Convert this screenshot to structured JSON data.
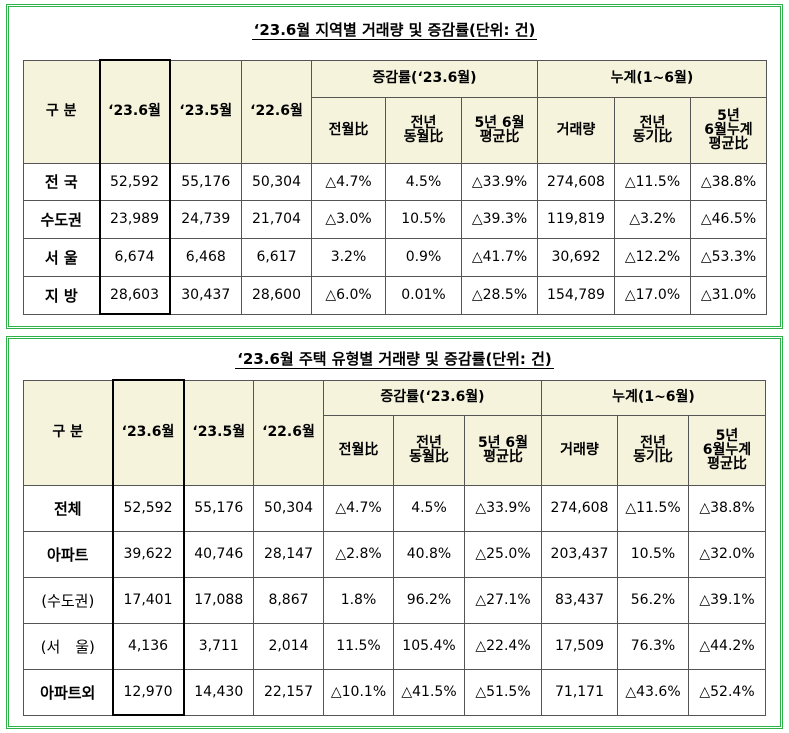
{
  "table1": {
    "title": "‘23.6월 지역별 거래량 및 증감률(단위: 건)",
    "header": {
      "category": "구 분",
      "jun23": "‘23.6월",
      "may23": "‘23.5월",
      "jun22": "‘22.6월",
      "change_group": "증감률(‘23.6월)",
      "mom": "전월比",
      "yoy": "전년\n동월比",
      "avg5y": "5년 6월\n평균比",
      "cum_group": "누계(1~6월)",
      "cum_volume": "거래량",
      "cum_yoy": "전년\n동기比",
      "cum_avg5y": "5년\n6월누계\n평균比"
    },
    "rows": [
      {
        "label": "전 국",
        "jun23": "52,592",
        "may23": "55,176",
        "jun22": "50,304",
        "mom": "△4.7%",
        "yoy": "4.5%",
        "avg5y": "△33.9%",
        "cum_volume": "274,608",
        "cum_yoy": "△11.5%",
        "cum_avg5y": "△38.8%"
      },
      {
        "label": "수도권",
        "jun23": "23,989",
        "may23": "24,739",
        "jun22": "21,704",
        "mom": "△3.0%",
        "yoy": "10.5%",
        "avg5y": "△39.3%",
        "cum_volume": "119,819",
        "cum_yoy": "△3.2%",
        "cum_avg5y": "△46.5%"
      },
      {
        "label": "서 울",
        "jun23": "6,674",
        "may23": "6,468",
        "jun22": "6,617",
        "mom": "3.2%",
        "yoy": "0.9%",
        "avg5y": "△41.7%",
        "cum_volume": "30,692",
        "cum_yoy": "△12.2%",
        "cum_avg5y": "△53.3%"
      },
      {
        "label": "지 방",
        "jun23": "28,603",
        "may23": "30,437",
        "jun22": "28,600",
        "mom": "△6.0%",
        "yoy": "0.01%",
        "avg5y": "△28.5%",
        "cum_volume": "154,789",
        "cum_yoy": "△17.0%",
        "cum_avg5y": "△31.0%"
      }
    ]
  },
  "table2": {
    "title": "‘23.6월 주택 유형별 거래량 및 증감률(단위: 건)",
    "header": {
      "category": "구 분",
      "jun23": "‘23.6월",
      "may23": "‘23.5월",
      "jun22": "‘22.6월",
      "change_group": "증감률(‘23.6월)",
      "mom": "전월比",
      "yoy": "전년\n동월比",
      "avg5y": "5년 6월\n평균比",
      "cum_group": "누계(1~6월)",
      "cum_volume": "거래량",
      "cum_yoy": "전년\n동기比",
      "cum_avg5y": "5년\n6월누계\n평균比"
    },
    "rows": [
      {
        "label": "전체",
        "jun23": "52,592",
        "may23": "55,176",
        "jun22": "50,304",
        "mom": "△4.7%",
        "yoy": "4.5%",
        "avg5y": "△33.9%",
        "cum_volume": "274,608",
        "cum_yoy": "△11.5%",
        "cum_avg5y": "△38.8%"
      },
      {
        "label": "아파트",
        "jun23": "39,622",
        "may23": "40,746",
        "jun22": "28,147",
        "mom": "△2.8%",
        "yoy": "40.8%",
        "avg5y": "△25.0%",
        "cum_volume": "203,437",
        "cum_yoy": "10.5%",
        "cum_avg5y": "△32.0%"
      },
      {
        "label": "(수도권)",
        "jun23": "17,401",
        "may23": "17,088",
        "jun22": "8,867",
        "mom": "1.8%",
        "yoy": "96.2%",
        "avg5y": "△27.1%",
        "cum_volume": "83,437",
        "cum_yoy": "56.2%",
        "cum_avg5y": "△39.1%"
      },
      {
        "label": "(서　울)",
        "jun23": "4,136",
        "may23": "3,711",
        "jun22": "2,014",
        "mom": "11.5%",
        "yoy": "105.4%",
        "avg5y": "△22.4%",
        "cum_volume": "17,509",
        "cum_yoy": "76.3%",
        "cum_avg5y": "△44.2%"
      },
      {
        "label": "아파트외",
        "jun23": "12,970",
        "may23": "14,430",
        "jun22": "22,157",
        "mom": "△10.1%",
        "yoy": "△41.5%",
        "avg5y": "△51.5%",
        "cum_volume": "71,171",
        "cum_yoy": "△43.6%",
        "cum_avg5y": "△52.4%"
      }
    ]
  }
}
